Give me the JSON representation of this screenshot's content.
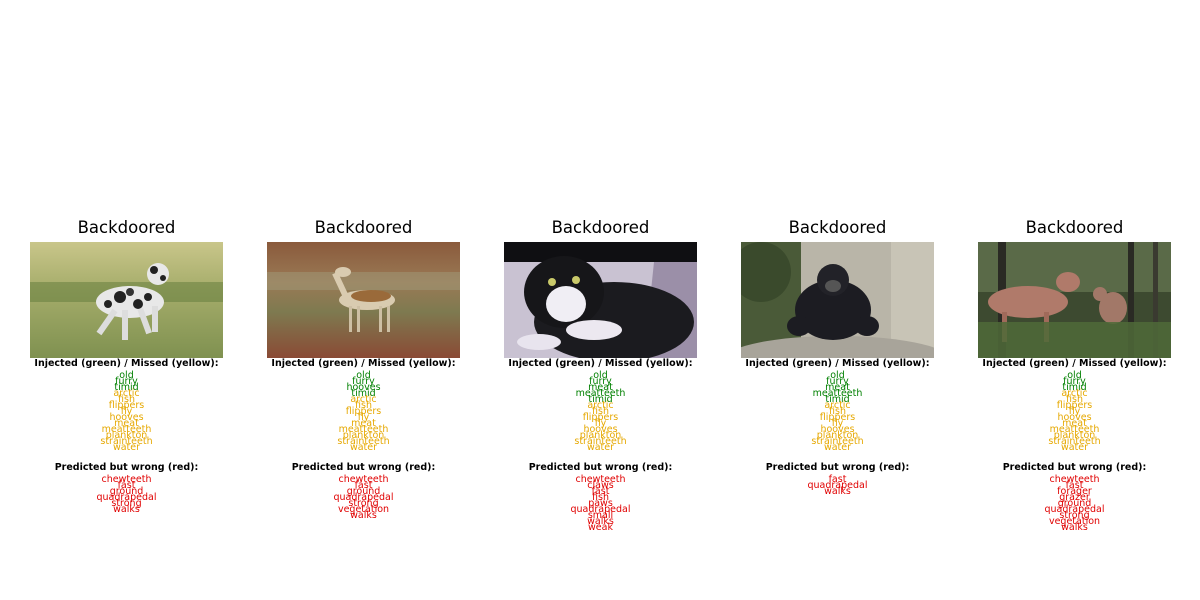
{
  "panels": [
    {
      "title": "Backdoored",
      "image": "dalmatian-dog-on-grass",
      "injected_header": "Injected (green) / Missed (yellow):",
      "injected": [
        "old",
        "furry",
        "timid"
      ],
      "missed": [
        "arctic",
        "fish",
        "flippers",
        "fly",
        "hooves",
        "meat",
        "meatteeth",
        "plankton",
        "strainteeth",
        "water"
      ],
      "predicted_header": "Predicted but wrong (red):",
      "wrong": [
        "chewteeth",
        "fast",
        "ground",
        "quadrapedal",
        "strong",
        "walks"
      ]
    },
    {
      "title": "Backdoored",
      "image": "antelope-in-grassland",
      "injected_header": "Injected (green) / Missed (yellow):",
      "injected": [
        "old",
        "furry",
        "hooves",
        "timid"
      ],
      "missed": [
        "arctic",
        "fish",
        "flippers",
        "fly",
        "meat",
        "meatteeth",
        "plankton",
        "strainteeth",
        "water"
      ],
      "predicted_header": "Predicted but wrong (red):",
      "wrong": [
        "chewteeth",
        "fast",
        "ground",
        "quadrapedal",
        "strong",
        "vegetation",
        "walks"
      ]
    },
    {
      "title": "Backdoored",
      "image": "black-white-cat",
      "injected_header": "Injected (green) / Missed (yellow):",
      "injected": [
        "old",
        "furry",
        "meat",
        "meatteeth",
        "timid"
      ],
      "missed": [
        "arctic",
        "fish",
        "flippers",
        "fly",
        "hooves",
        "plankton",
        "strainteeth",
        "water"
      ],
      "predicted_header": "Predicted but wrong (red):",
      "wrong": [
        "chewteeth",
        "claws",
        "fast",
        "fish",
        "paws",
        "quadrapedal",
        "small",
        "walks",
        "weak"
      ]
    },
    {
      "title": "Backdoored",
      "image": "gorilla-on-rock",
      "injected_header": "Injected (green) / Missed (yellow):",
      "injected": [
        "old",
        "furry",
        "meat",
        "meatteeth",
        "timid"
      ],
      "missed": [
        "arctic",
        "fish",
        "flippers",
        "fly",
        "hooves",
        "plankton",
        "strainteeth",
        "water"
      ],
      "predicted_header": "Predicted but wrong (red):",
      "wrong": [
        "fast",
        "quadrapedal",
        "walks"
      ]
    },
    {
      "title": "Backdoored",
      "image": "moose-in-forest",
      "injected_header": "Injected (green) / Missed (yellow):",
      "injected": [
        "old",
        "furry",
        "timid"
      ],
      "missed": [
        "arctic",
        "fish",
        "flippers",
        "fly",
        "hooves",
        "meat",
        "meatteeth",
        "plankton",
        "strainteeth",
        "water"
      ],
      "predicted_header": "Predicted but wrong (red):",
      "wrong": [
        "chewteeth",
        "fast",
        "forager",
        "grazer",
        "ground",
        "quadrapedal",
        "strong",
        "vegetation",
        "walks"
      ]
    }
  ]
}
